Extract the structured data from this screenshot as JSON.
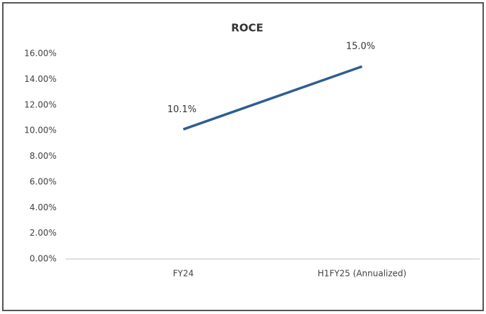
{
  "chart_data": {
    "type": "line",
    "title": "ROCE",
    "categories": [
      "FY24",
      "H1FY25 (Annualized)"
    ],
    "series": [
      {
        "name": "ROCE",
        "color": "#2e5e91",
        "values": [
          10.1,
          15.0
        ],
        "value_labels": [
          "10.1%",
          "15.0%"
        ]
      }
    ],
    "ylim": [
      0,
      16
    ],
    "yticks": [
      {
        "value": 0,
        "label": "0.00%"
      },
      {
        "value": 2,
        "label": "2.00%"
      },
      {
        "value": 4,
        "label": "4.00%"
      },
      {
        "value": 6,
        "label": "6.00%"
      },
      {
        "value": 8,
        "label": "8.00%"
      },
      {
        "value": 10,
        "label": "10.00%"
      },
      {
        "value": 12,
        "label": "12.00%"
      },
      {
        "value": 14,
        "label": "14.00%"
      },
      {
        "value": 16,
        "label": "16.00%"
      }
    ],
    "grid": false
  }
}
